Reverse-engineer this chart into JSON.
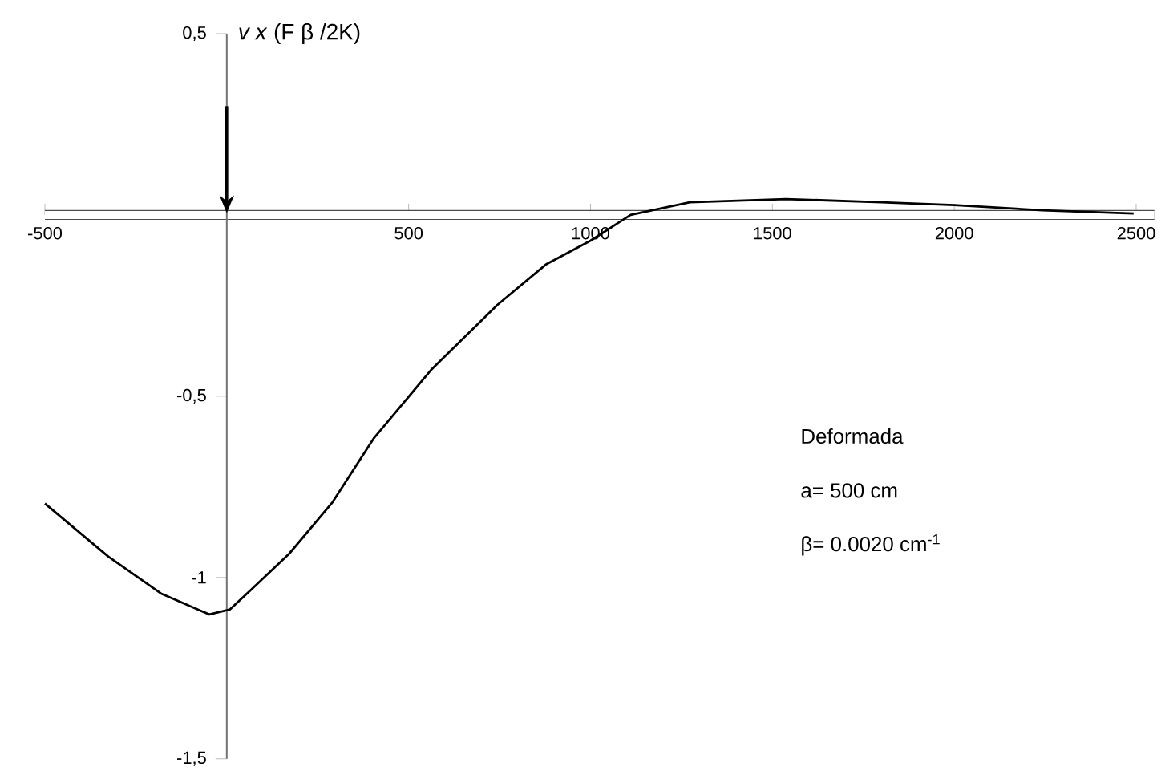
{
  "chart_data": {
    "type": "line",
    "ylabel": "*v x* (F β /2K)",
    "x": [
      -500,
      -326,
      -181,
      -48,
      9,
      70,
      172,
      291,
      405,
      564,
      744,
      877,
      1000,
      1110,
      1273,
      1537,
      1800,
      2000,
      2242,
      2493
    ],
    "series": [
      {
        "color": "#000000",
        "values": [
          -0.796,
          -0.942,
          -1.044,
          -1.102,
          -1.088,
          -1.031,
          -0.934,
          -0.792,
          -0.615,
          -0.425,
          -0.248,
          -0.137,
          -0.071,
          0,
          0.035,
          0.044,
          0.035,
          0.027,
          0.013,
          0.004
        ]
      }
    ],
    "xlim": [
      -500,
      2550
    ],
    "ylim": [
      -1.5,
      0.5
    ],
    "xticks": [
      -500,
      500,
      1000,
      1500,
      2000,
      2500
    ],
    "yticks": [
      {
        "value": -1.5,
        "label": "-1,5"
      },
      {
        "value": -1,
        "label": "-1"
      },
      {
        "value": -0.5,
        "label": "-0,5"
      },
      {
        "value": 0.5,
        "label": "0,5"
      }
    ],
    "annotations": [
      "Deformada",
      "a= 500 cm",
      "β= 0.0020 cm$^{-1}$"
    ],
    "grid": false,
    "marker": "none",
    "line_style": "solid"
  }
}
